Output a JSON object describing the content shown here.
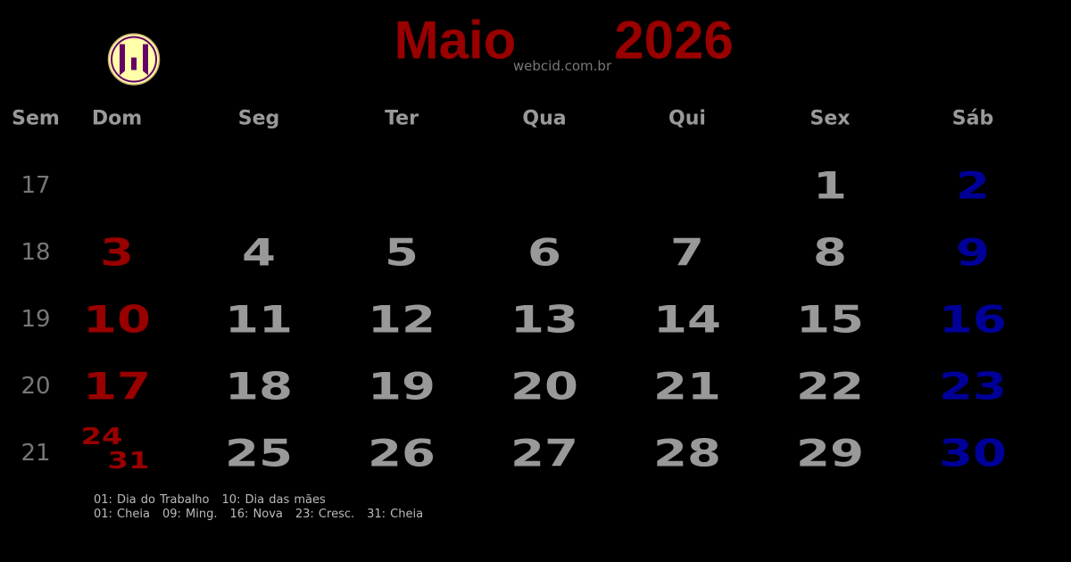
{
  "header": {
    "month": "Maio",
    "year": "2026",
    "site": "webcid.com.br"
  },
  "colors": {
    "sunday": "#990000",
    "saturday": "#000099",
    "weekday": "#999999",
    "title": "#990000"
  },
  "logo": {
    "icon": "webcid-logo",
    "fill": "#ffffaa",
    "ring": "#660066"
  },
  "columns": [
    "Sem",
    "Dom",
    "Seg",
    "Ter",
    "Qua",
    "Qui",
    "Sex",
    "Sáb"
  ],
  "weeks": [
    {
      "week": "17",
      "days": [
        "",
        "",
        "",
        "",
        "",
        "1",
        "2"
      ]
    },
    {
      "week": "18",
      "days": [
        "3",
        "4",
        "5",
        "6",
        "7",
        "8",
        "9"
      ]
    },
    {
      "week": "19",
      "days": [
        "10",
        "11",
        "12",
        "13",
        "14",
        "15",
        "16"
      ]
    },
    {
      "week": "20",
      "days": [
        "17",
        "18",
        "19",
        "20",
        "21",
        "22",
        "23"
      ]
    },
    {
      "week": "21",
      "days": [
        "24",
        "25",
        "26",
        "27",
        "28",
        "29",
        "30"
      ],
      "extra_sunday": "31"
    }
  ],
  "holidays": [
    "01: Dia do Trabalho",
    "10: Dia das mães"
  ],
  "moon_phases": [
    "01: Cheia",
    "09: Ming.",
    "16: Nova",
    "23: Cresc.",
    "31: Cheia"
  ]
}
